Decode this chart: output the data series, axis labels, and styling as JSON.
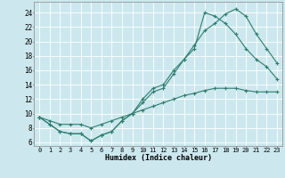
{
  "xlabel": "Humidex (Indice chaleur)",
  "bg_color": "#cce8ee",
  "grid_color": "#b0d8e0",
  "line_color": "#2e7d6e",
  "xlim": [
    -0.5,
    23.5
  ],
  "ylim": [
    5.5,
    25.5
  ],
  "xticks": [
    0,
    1,
    2,
    3,
    4,
    5,
    6,
    7,
    8,
    9,
    10,
    11,
    12,
    13,
    14,
    15,
    16,
    17,
    18,
    19,
    20,
    21,
    22,
    23
  ],
  "yticks": [
    6,
    8,
    10,
    12,
    14,
    16,
    18,
    20,
    22,
    24
  ],
  "line1_x": [
    0,
    1,
    2,
    3,
    4,
    5,
    6,
    7,
    8,
    9,
    10,
    11,
    12,
    13,
    14,
    15,
    16,
    17,
    18,
    19,
    20,
    21,
    22,
    23
  ],
  "line1_y": [
    9.5,
    8.5,
    7.5,
    7.2,
    7.2,
    6.2,
    7.0,
    7.5,
    9.0,
    10.0,
    11.5,
    13.0,
    13.5,
    15.5,
    17.5,
    19.5,
    21.5,
    22.5,
    23.8,
    24.5,
    23.5,
    21.0,
    19.0,
    17.0
  ],
  "line2_x": [
    0,
    1,
    2,
    3,
    4,
    5,
    6,
    7,
    8,
    9,
    10,
    11,
    12,
    13,
    14,
    15,
    16,
    17,
    18,
    19,
    20,
    21,
    22,
    23
  ],
  "line2_y": [
    9.5,
    8.5,
    7.5,
    7.2,
    7.2,
    6.2,
    7.0,
    7.5,
    9.0,
    10.0,
    12.0,
    13.5,
    14.0,
    16.0,
    17.5,
    19.0,
    24.0,
    23.5,
    22.5,
    21.0,
    19.0,
    17.5,
    16.5,
    14.8
  ],
  "line3_x": [
    0,
    1,
    2,
    3,
    4,
    5,
    6,
    7,
    8,
    9,
    10,
    11,
    12,
    13,
    14,
    15,
    16,
    17,
    18,
    19,
    20,
    21,
    22,
    23
  ],
  "line3_y": [
    9.5,
    9.0,
    8.5,
    8.5,
    8.5,
    8.0,
    8.5,
    9.0,
    9.5,
    10.0,
    10.5,
    11.0,
    11.5,
    12.0,
    12.5,
    12.8,
    13.2,
    13.5,
    13.5,
    13.5,
    13.2,
    13.0,
    13.0,
    13.0
  ]
}
